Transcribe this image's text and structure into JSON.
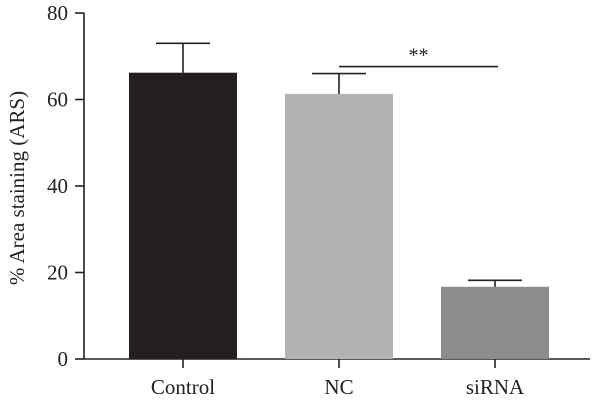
{
  "chart_data": {
    "type": "bar",
    "categories": [
      "Control",
      "NC",
      "siRNA"
    ],
    "values": [
      66.2,
      61.3,
      16.7
    ],
    "errors": [
      6.8,
      4.7,
      1.5
    ],
    "colors": [
      "#231f20",
      "#b3b3b3",
      "#8c8c8e"
    ],
    "ylabel": "% Area staining (ARS)",
    "xlabel": "",
    "ylim": [
      0,
      80
    ],
    "yticks": [
      0,
      20,
      40,
      60,
      80
    ],
    "grid": false,
    "legend": "none",
    "annotations": [
      {
        "text": "**",
        "from": "NC",
        "to": "siRNA"
      }
    ]
  }
}
